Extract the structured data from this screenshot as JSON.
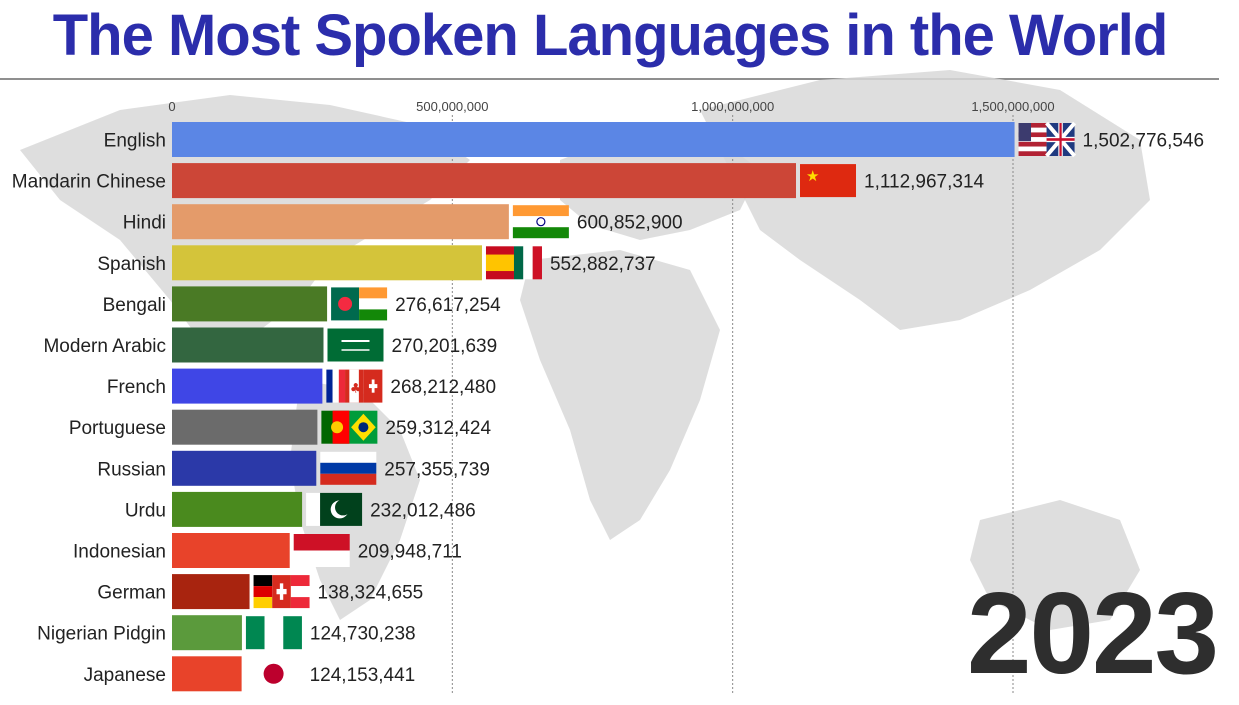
{
  "title": "The Most Spoken Languages in the World",
  "year": "2023",
  "chart_data": {
    "type": "bar",
    "orientation": "horizontal",
    "title": "The Most Spoken Languages in the World",
    "xlim": [
      0,
      1500000000
    ],
    "xticks": [
      0,
      500000000,
      1000000000,
      1500000000
    ],
    "xtick_labels": [
      "0",
      "500,000,000",
      "1,000,000,000",
      "1,500,000,000"
    ],
    "grid": true,
    "categories": [
      "English",
      "Mandarin Chinese",
      "Hindi",
      "Spanish",
      "Bengali",
      "Modern Arabic",
      "French",
      "Portuguese",
      "Russian",
      "Urdu",
      "Indonesian",
      "German",
      "Nigerian Pidgin",
      "Japanese"
    ],
    "values": [
      1502776546,
      1112967314,
      600852900,
      552882737,
      276617254,
      270201639,
      268212480,
      259312424,
      257355739,
      232012486,
      209948711,
      138324655,
      124730238,
      124153441
    ],
    "value_labels": [
      "1,502,776,546",
      "1,112,967,314",
      "600,852,900",
      "552,882,737",
      "276,617,254",
      "270,201,639",
      "268,212,480",
      "259,312,424",
      "257,355,739",
      "232,012,486",
      "209,948,711",
      "138,324,655",
      "124,730,238",
      "124,153,441"
    ],
    "colors": [
      "#5b86e5",
      "#cc4637",
      "#e49b6a",
      "#d4c43a",
      "#4a7a25",
      "#336640",
      "#3f46e6",
      "#6b6b6b",
      "#2b39a8",
      "#4a8a1e",
      "#e8432a",
      "#a8240f",
      "#5b9a3c",
      "#e8432a"
    ],
    "flags": [
      "usa-uk-flag",
      "china-flag",
      "india-flag",
      "spain-mexico-flag",
      "bangladesh-india-flag",
      "saudi-flag",
      "france-canada-swiss-flag",
      "portugal-brazil-flag",
      "russia-flag",
      "pakistan-flag",
      "indonesia-flag",
      "germany-swiss-austria-flag",
      "nigeria-flag",
      "japan-flag"
    ]
  }
}
